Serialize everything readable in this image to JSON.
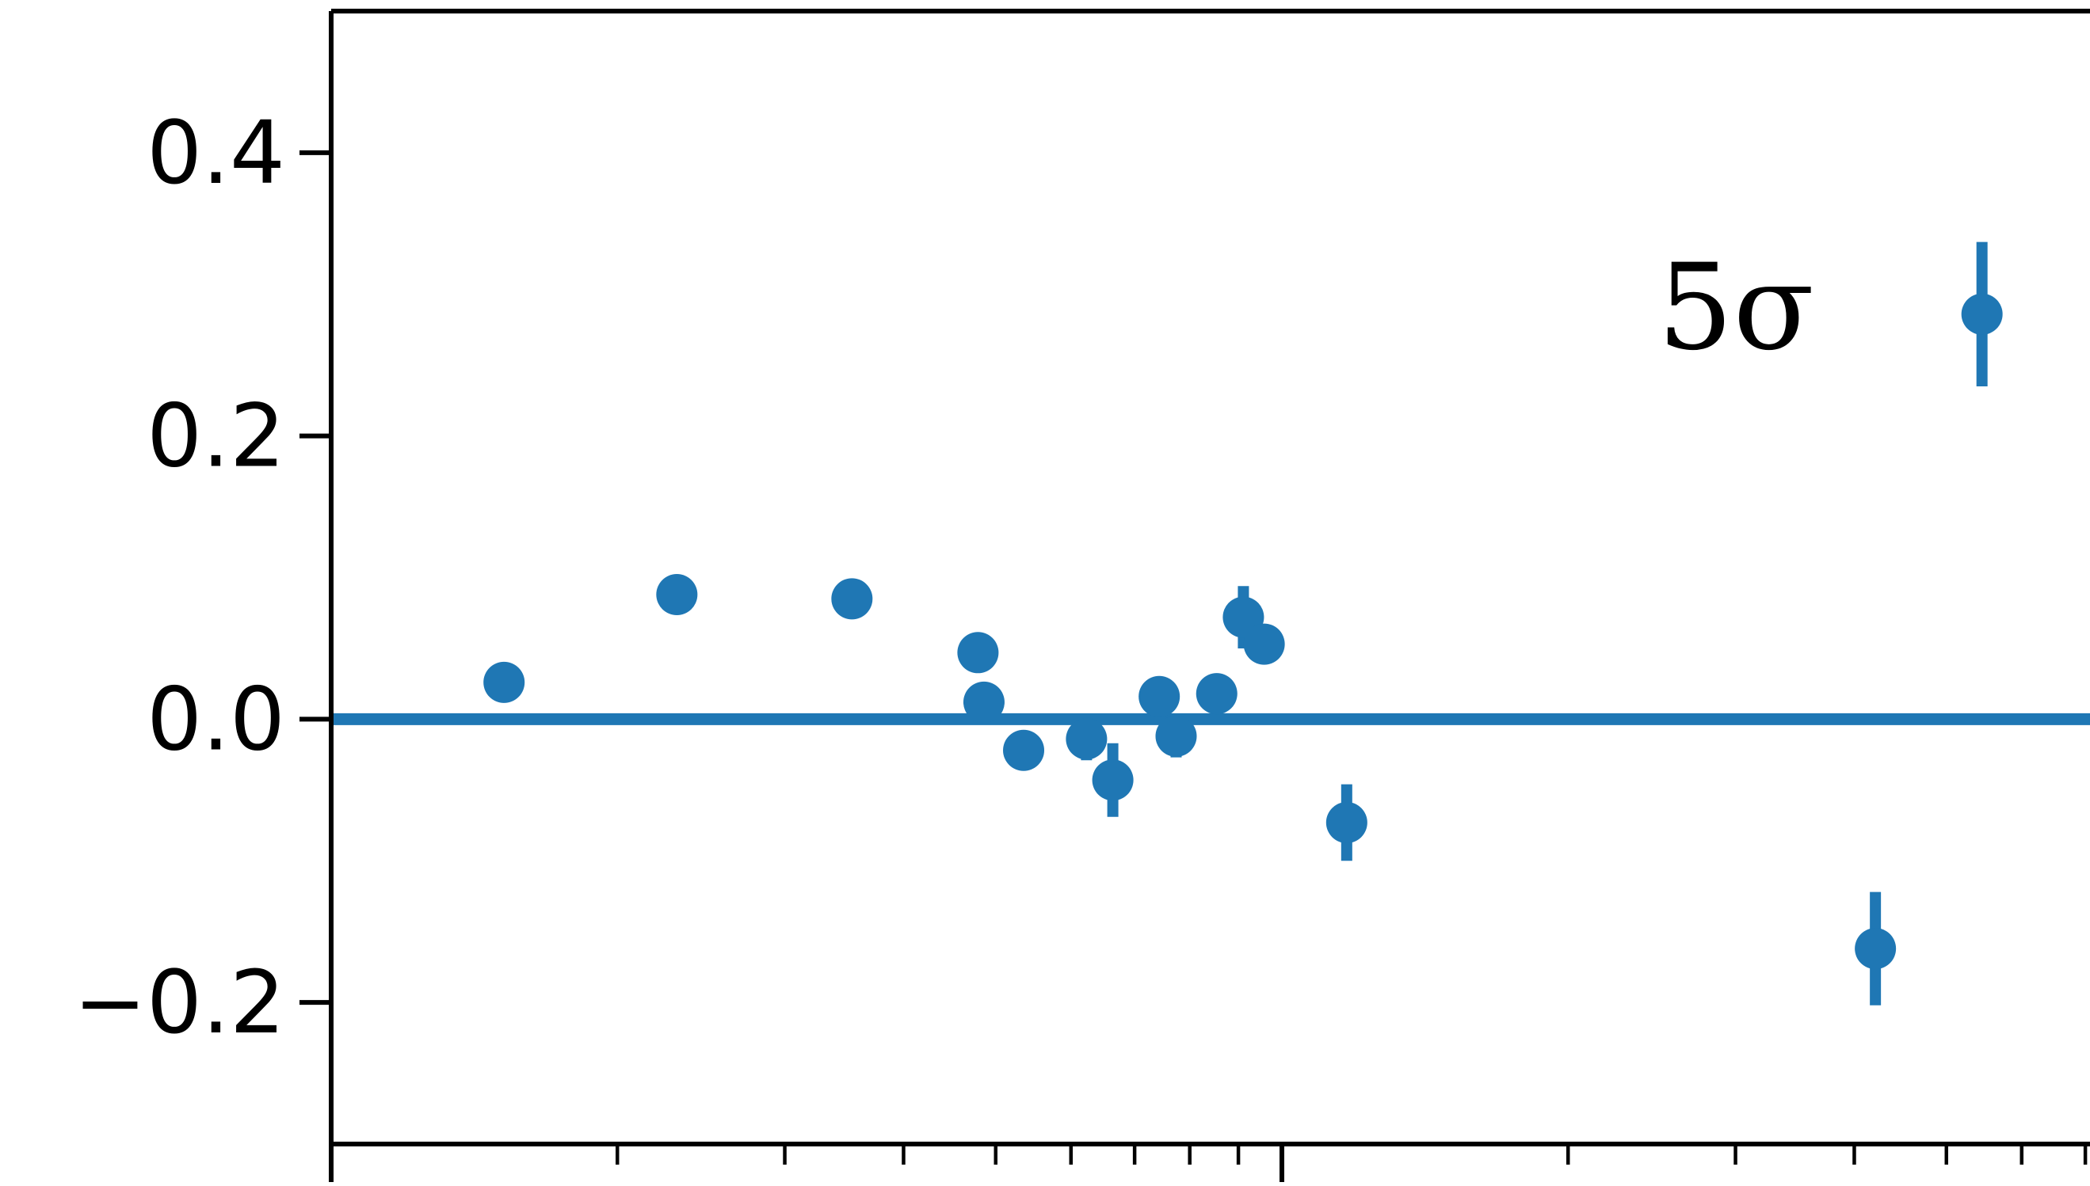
{
  "chart_data": {
    "type": "scatter",
    "title": "",
    "xlabel": "",
    "ylabel": "",
    "x_scale": "log",
    "x_log_decades": [
      -1,
      0.85
    ],
    "y_range": [
      -0.3,
      0.5
    ],
    "y_ticks": [
      {
        "value": 0.4,
        "label": "0.4"
      },
      {
        "value": 0.2,
        "label": "0.2"
      },
      {
        "value": 0.0,
        "label": "0.0"
      },
      {
        "value": -0.2,
        "label": "−0.2"
      }
    ],
    "x_tick_labels": [],
    "reference_line": {
      "y": 0.0
    },
    "annotation": "5σ",
    "grid": false,
    "color": "#1f77b4",
    "points": [
      {
        "x": 0.152,
        "y": 0.026,
        "err": 0.013
      },
      {
        "x": 0.231,
        "y": 0.088,
        "err": 0.006
      },
      {
        "x": 0.353,
        "y": 0.085,
        "err": 0.006
      },
      {
        "x": 0.479,
        "y": 0.047,
        "err": 0.008
      },
      {
        "x": 0.486,
        "y": 0.012,
        "err": 0.01
      },
      {
        "x": 0.535,
        "y": -0.022,
        "err": 0.008
      },
      {
        "x": 0.623,
        "y": -0.014,
        "err": 0.015
      },
      {
        "x": 0.664,
        "y": -0.043,
        "err": 0.026
      },
      {
        "x": 0.743,
        "y": 0.016,
        "err": 0.01
      },
      {
        "x": 0.774,
        "y": -0.012,
        "err": 0.015
      },
      {
        "x": 0.854,
        "y": 0.018,
        "err": 0.006
      },
      {
        "x": 0.911,
        "y": 0.072,
        "err": 0.022
      },
      {
        "x": 0.958,
        "y": 0.053,
        "err": 0.01
      },
      {
        "x": 1.17,
        "y": -0.073,
        "err": 0.027
      },
      {
        "x": 4.21,
        "y": -0.162,
        "err": 0.04
      },
      {
        "x": 5.45,
        "y": 0.286,
        "err": 0.051
      }
    ]
  }
}
